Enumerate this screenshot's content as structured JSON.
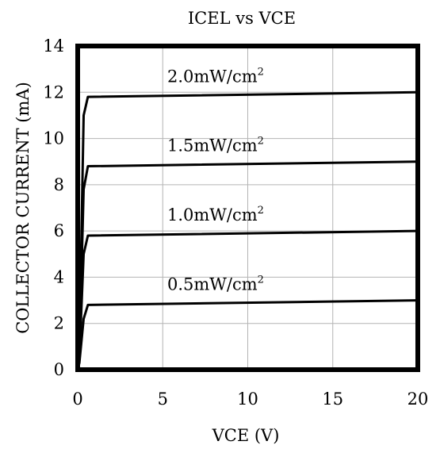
{
  "chart_data": {
    "type": "line",
    "title": "ICEL vs VCE",
    "xlabel": "VCE (V)",
    "ylabel": "COLLECTOR CURRENT (mA)",
    "xlim": [
      0,
      20
    ],
    "ylim": [
      0,
      14
    ],
    "xticks": [
      0,
      5,
      10,
      15,
      20
    ],
    "yticks": [
      0,
      2,
      4,
      6,
      8,
      10,
      12,
      14
    ],
    "grid": true,
    "legend": "none",
    "line_color": "#000000",
    "series": [
      {
        "label_text": "0.5mW/cm",
        "label_sup": "2",
        "x": [
          0,
          0.1,
          0.35,
          0.6,
          20
        ],
        "y": [
          0,
          0.3,
          2.2,
          2.8,
          3.0
        ]
      },
      {
        "label_text": "1.0mW/cm",
        "label_sup": "2",
        "x": [
          0,
          0.1,
          0.35,
          0.6,
          20
        ],
        "y": [
          0,
          0.5,
          5.0,
          5.8,
          6.0
        ]
      },
      {
        "label_text": "1.5mW/cm",
        "label_sup": "2",
        "x": [
          0,
          0.1,
          0.35,
          0.6,
          20
        ],
        "y": [
          0,
          0.7,
          7.8,
          8.8,
          9.0
        ]
      },
      {
        "label_text": "2.0mW/cm",
        "label_sup": "2",
        "x": [
          0,
          0.1,
          0.35,
          0.6,
          20
        ],
        "y": [
          0,
          1.0,
          11.0,
          11.8,
          12.0
        ]
      }
    ]
  }
}
